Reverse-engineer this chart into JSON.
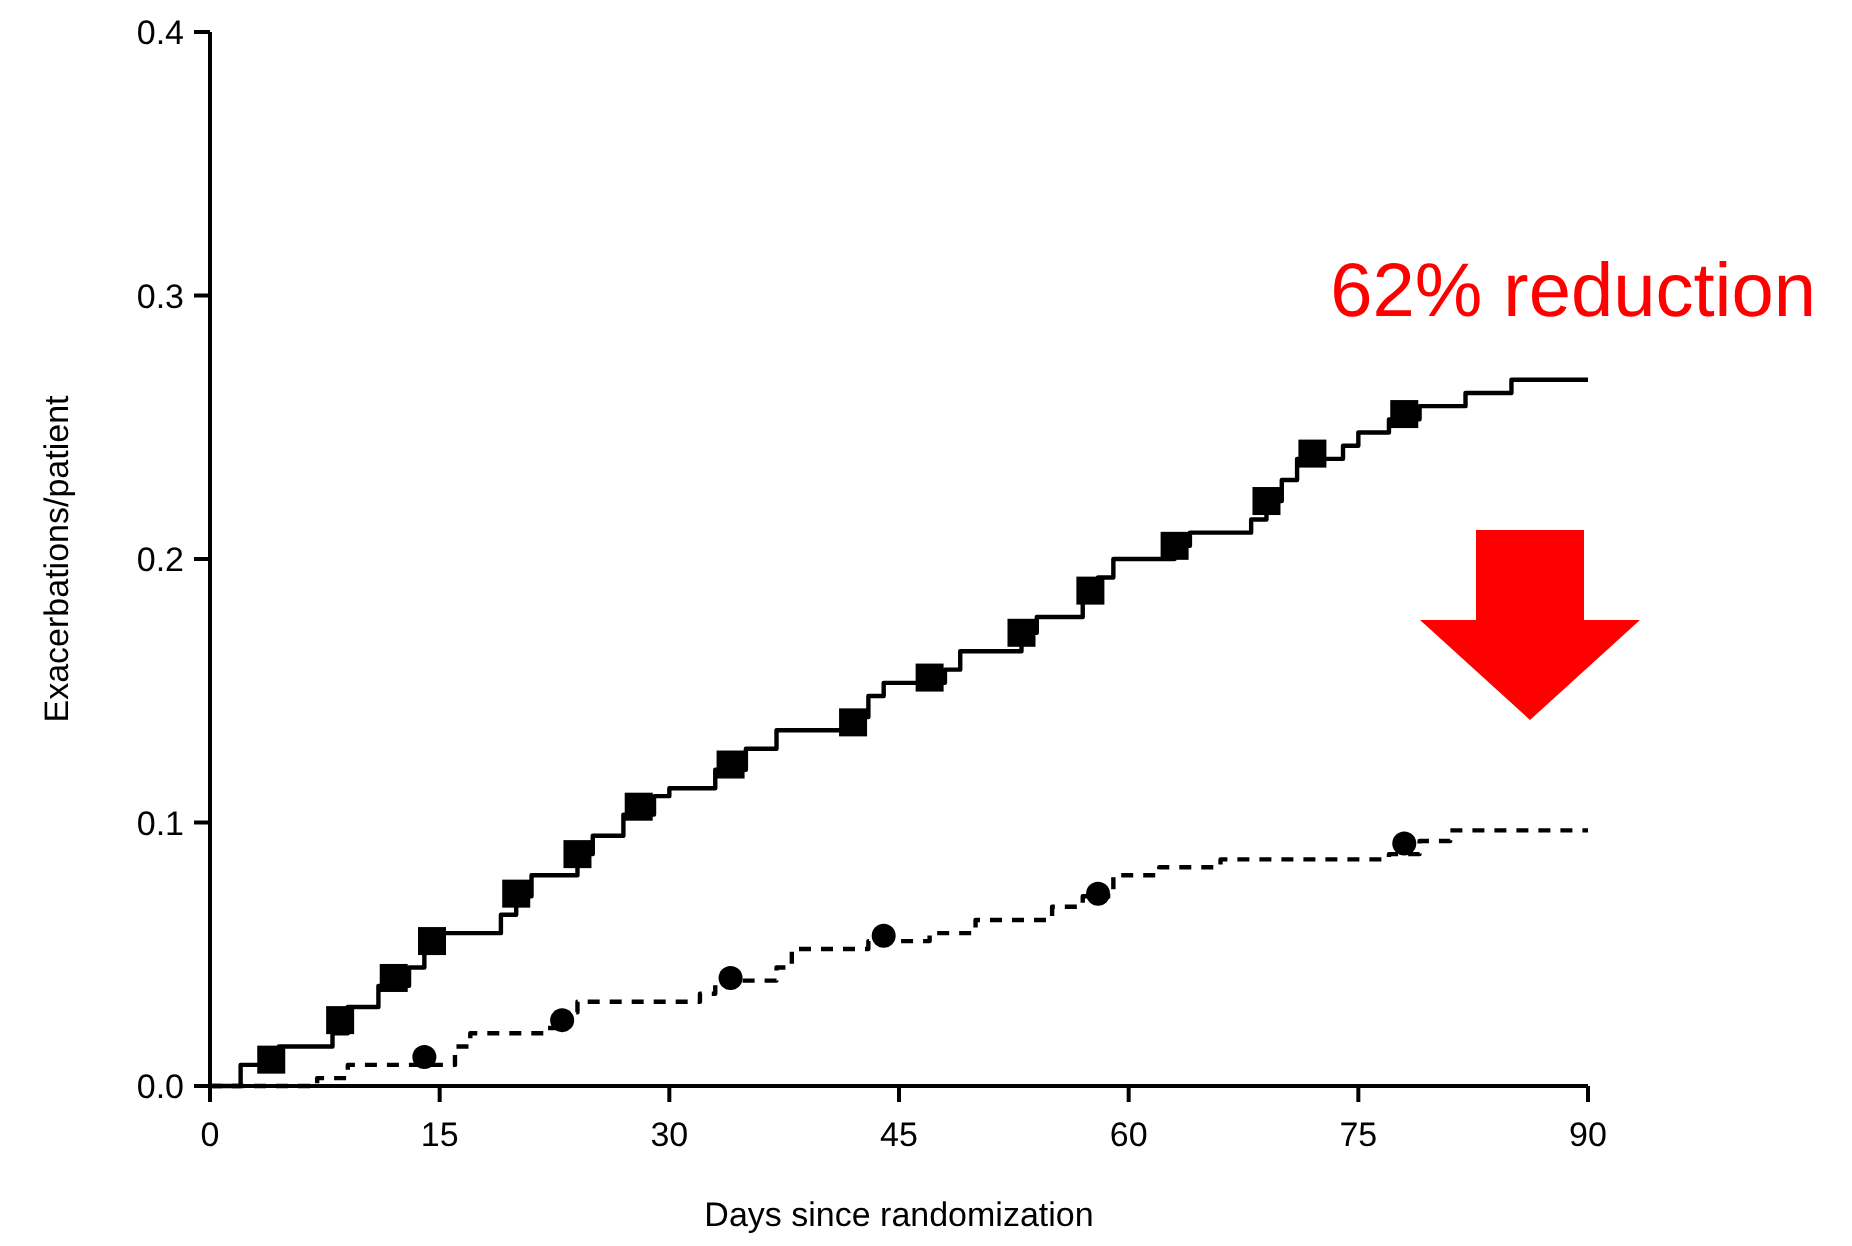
{
  "chart_data": {
    "type": "step",
    "xlabel": "Days since randomization",
    "ylabel": "Exacerbations/patient",
    "xlim": [
      0,
      90
    ],
    "ylim": [
      0,
      0.4
    ],
    "xticks": [
      0,
      15,
      30,
      45,
      60,
      75,
      90
    ],
    "yticks": [
      {
        "value": 0,
        "label": "0.0"
      },
      0.1,
      0.2,
      0.3,
      0.4
    ],
    "grid": false,
    "annotations": [
      "62% reduction"
    ],
    "series": [
      {
        "type": "step",
        "color": "#000000",
        "line_style": "solid",
        "marker": "none",
        "x": [
          0,
          2,
          4.5,
          8,
          9,
          11,
          13,
          14,
          15,
          19,
          20,
          21,
          24,
          25,
          27,
          29,
          30,
          33,
          35,
          37,
          42,
          43,
          44,
          48,
          49,
          53,
          54,
          57,
          58,
          59,
          63,
          64,
          68,
          69,
          70,
          71,
          74,
          75,
          77,
          79,
          82,
          85,
          90
        ],
        "values": [
          0,
          0.008,
          0.015,
          0.02,
          0.03,
          0.038,
          0.045,
          0.052,
          0.058,
          0.065,
          0.072,
          0.08,
          0.088,
          0.095,
          0.103,
          0.11,
          0.113,
          0.12,
          0.128,
          0.135,
          0.14,
          0.148,
          0.153,
          0.158,
          0.165,
          0.172,
          0.178,
          0.185,
          0.193,
          0.2,
          0.205,
          0.21,
          0.215,
          0.222,
          0.23,
          0.238,
          0.243,
          0.248,
          0.253,
          0.258,
          0.263,
          0.268,
          0.268
        ]
      },
      {
        "type": "step",
        "color": "#000000",
        "line_style": "dashed",
        "marker": "none",
        "x": [
          0,
          7,
          9,
          16,
          17,
          22,
          23,
          24,
          32,
          33,
          37,
          38,
          43,
          47,
          50,
          55,
          57,
          59,
          62,
          66,
          77,
          79,
          81,
          90
        ],
        "values": [
          0,
          0.003,
          0.008,
          0.015,
          0.02,
          0.022,
          0.028,
          0.032,
          0.035,
          0.04,
          0.045,
          0.052,
          0.055,
          0.058,
          0.063,
          0.068,
          0.072,
          0.08,
          0.083,
          0.086,
          0.088,
          0.093,
          0.097,
          0.097
        ]
      },
      {
        "type": "scatter",
        "color": "#000000",
        "marker": "square",
        "x": [
          4,
          8.5,
          12,
          14.5,
          20,
          24,
          28,
          34,
          42,
          47,
          53,
          57.5,
          63,
          69,
          72,
          78
        ],
        "values": [
          0.01,
          0.025,
          0.041,
          0.055,
          0.073,
          0.088,
          0.106,
          0.122,
          0.138,
          0.155,
          0.172,
          0.188,
          0.205,
          0.222,
          0.24,
          0.255
        ]
      },
      {
        "type": "scatter",
        "color": "#000000",
        "marker": "circle",
        "x": [
          14,
          23,
          34,
          44,
          58,
          78
        ],
        "values": [
          0.011,
          0.025,
          0.041,
          0.057,
          0.073,
          0.092
        ]
      }
    ]
  }
}
